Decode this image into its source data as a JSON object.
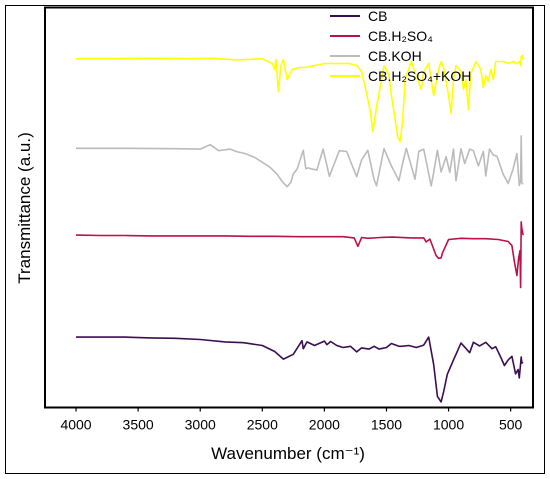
{
  "chart_data": {
    "type": "line",
    "title": "",
    "xlabel": "Wavenumber (cm⁻¹)",
    "ylabel": "Transmittance (a.u.)",
    "x_reversed": true,
    "xlim": [
      4250,
      320
    ],
    "ylim": [
      0,
      100
    ],
    "x_ticks": [
      4000,
      3500,
      3000,
      2500,
      2000,
      1500,
      1000,
      500
    ],
    "x_tick_labels": [
      "4000",
      "3500",
      "3000",
      "2500",
      "2000",
      "1500",
      "1000",
      "500"
    ],
    "y_ticks_visible": false,
    "grid": false,
    "legend_position": "top-right",
    "series": [
      {
        "name": "CB",
        "color": "#3b0e52",
        "x": [
          4000,
          3800,
          3600,
          3400,
          3200,
          3000,
          2800,
          2650,
          2500,
          2400,
          2330,
          2250,
          2180,
          2170,
          2140,
          2080,
          2000,
          1980,
          1950,
          1900,
          1850,
          1790,
          1740,
          1700,
          1640,
          1600,
          1560,
          1500,
          1460,
          1400,
          1380,
          1320,
          1260,
          1200,
          1160,
          1120,
          1090,
          1060,
          1040,
          1010,
          960,
          900,
          870,
          830,
          800,
          750,
          700,
          650,
          620,
          580,
          550,
          520,
          490,
          460,
          440,
          430,
          415,
          410,
          400
        ],
        "y": [
          17.6,
          17.6,
          17.6,
          17.4,
          17.3,
          17.0,
          16.4,
          16.2,
          15.5,
          14.0,
          12.1,
          13.3,
          16.7,
          14.7,
          16.4,
          15.5,
          16.6,
          15.7,
          16.5,
          15.5,
          15.0,
          15.3,
          13.9,
          14.9,
          14.6,
          15.3,
          14.6,
          15.0,
          16.0,
          15.3,
          15.3,
          15.5,
          15.0,
          15.6,
          17.6,
          10.7,
          2.8,
          1.4,
          3.9,
          8.3,
          11.9,
          16.1,
          15.1,
          13.7,
          16.3,
          15.4,
          16.3,
          14.7,
          15.2,
          12.6,
          10.5,
          11.9,
          12.8,
          8.4,
          9.5,
          7.4,
          12.6,
          11.1,
          11.3
        ]
      },
      {
        "name": "CB.H₂SO₄",
        "color": "#b8114b",
        "x": [
          4000,
          3800,
          3600,
          3400,
          3200,
          3000,
          2800,
          2600,
          2400,
          2200,
          2000,
          1850,
          1760,
          1730,
          1700,
          1650,
          1550,
          1450,
          1300,
          1200,
          1180,
          1150,
          1120,
          1100,
          1080,
          1060,
          1050,
          1000,
          900,
          800,
          700,
          600,
          520,
          490,
          470,
          450,
          435,
          425,
          420,
          415,
          410,
          400
        ],
        "y": [
          43.1,
          43.0,
          43.0,
          42.9,
          42.9,
          42.9,
          42.9,
          42.8,
          42.8,
          42.7,
          42.7,
          42.7,
          42.4,
          40.3,
          42.5,
          42.3,
          42.5,
          42.6,
          42.4,
          42.4,
          41.4,
          42.1,
          39.6,
          38.0,
          37.3,
          37.4,
          38.6,
          42.0,
          42.3,
          42.2,
          42.2,
          42.0,
          41.5,
          40.5,
          36.4,
          33.0,
          37.5,
          39.2,
          30.0,
          46.4,
          44.8,
          43.1
        ]
      },
      {
        "name": "CB.KOH",
        "color": "#bbbbbb",
        "x": [
          4000,
          3600,
          3200,
          3000,
          2920,
          2850,
          2760,
          2700,
          2640,
          2560,
          2440,
          2380,
          2340,
          2300,
          2270,
          2250,
          2220,
          2170,
          2150,
          2130,
          2100,
          2060,
          2010,
          1960,
          1880,
          1820,
          1780,
          1740,
          1700,
          1650,
          1600,
          1580,
          1520,
          1460,
          1400,
          1370,
          1340,
          1270,
          1240,
          1200,
          1140,
          1120,
          1090,
          1060,
          1020,
          990,
          960,
          940,
          900,
          870,
          830,
          800,
          760,
          720,
          700,
          670,
          640,
          610,
          560,
          520,
          480,
          450,
          430,
          420,
          415,
          410,
          400
        ],
        "y": [
          64.8,
          64.8,
          64.7,
          64.6,
          65.7,
          64.2,
          64.6,
          63.9,
          63.5,
          62.5,
          60.1,
          58.3,
          56.5,
          55.2,
          56.3,
          58.4,
          59.6,
          64.3,
          59.7,
          59.9,
          59.6,
          59.4,
          64.6,
          57.8,
          64.2,
          64.0,
          60.8,
          57.7,
          61.9,
          64.3,
          57.0,
          55.4,
          64.7,
          60.4,
          56.7,
          61.0,
          64.8,
          57.1,
          64.0,
          64.6,
          55.4,
          58.8,
          64.3,
          58.9,
          62.7,
          58.8,
          64.6,
          56.7,
          64.7,
          61.0,
          64.6,
          64.2,
          60.4,
          64.0,
          57.9,
          64.6,
          63.1,
          62.8,
          58.3,
          56.0,
          59.6,
          63.5,
          55.5,
          56.6,
          67.9,
          56.2,
          55.8
        ]
      },
      {
        "name": "CB.H₂SO₄+KOH",
        "color": "#ffff00",
        "x": [
          4000,
          3700,
          3400,
          3100,
          2900,
          2700,
          2500,
          2420,
          2400,
          2390,
          2370,
          2350,
          2330,
          2300,
          2260,
          2200,
          2150,
          2000,
          1900,
          1800,
          1740,
          1700,
          1660,
          1630,
          1610,
          1580,
          1520,
          1480,
          1460,
          1430,
          1410,
          1390,
          1370,
          1350,
          1300,
          1220,
          1200,
          1160,
          1120,
          1080,
          1060,
          1040,
          1000,
          980,
          960,
          940,
          900,
          880,
          860,
          840,
          820,
          780,
          740,
          720,
          700,
          680,
          660,
          640,
          620,
          590,
          560,
          520,
          480,
          450,
          430,
          420,
          415,
          405,
          400
        ],
        "y": [
          87.2,
          87.2,
          87.3,
          87.2,
          87.3,
          86.9,
          87.2,
          86.0,
          84.5,
          87.0,
          79.0,
          85.5,
          87.0,
          82.0,
          84.5,
          85.0,
          85.0,
          86.0,
          86.0,
          86.0,
          85.5,
          84.0,
          78.5,
          74.0,
          69.0,
          75.0,
          85.5,
          83.0,
          78.0,
          72.0,
          67.5,
          66.5,
          71.5,
          82.0,
          86.5,
          79.5,
          84.0,
          86.0,
          78.0,
          84.5,
          86.5,
          85.0,
          78.0,
          73.5,
          82.0,
          85.5,
          84.0,
          79.5,
          82.0,
          74.5,
          83.5,
          86.5,
          84.5,
          80.0,
          83.0,
          81.5,
          84.5,
          82.0,
          86.5,
          86.5,
          86.5,
          86.0,
          86.5,
          86.0,
          86.5,
          85.5,
          87.7,
          88.0,
          87.0
        ]
      }
    ]
  }
}
